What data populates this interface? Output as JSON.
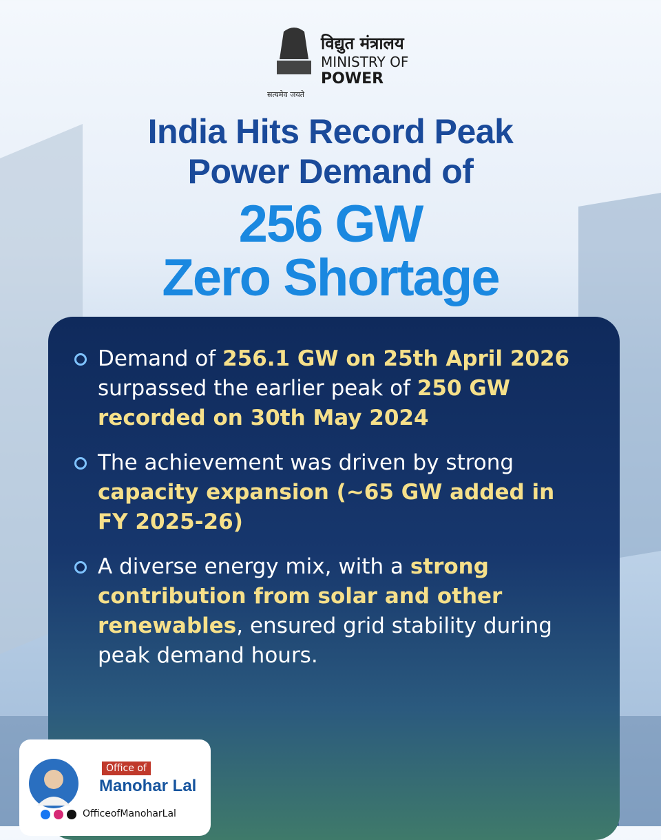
{
  "header": {
    "hindi_title": "विद्युत मंत्रालय",
    "ministry_line1": "MINISTRY OF",
    "ministry_line2": "POWER",
    "motto": "सत्यमेव जयते"
  },
  "headline": {
    "line1": "India Hits Record Peak",
    "line2": "Power Demand of",
    "figure": "256 GW",
    "tagline": "Zero Shortage"
  },
  "bullets": [
    {
      "segments": [
        {
          "text": "Demand of ",
          "highlight": false
        },
        {
          "text": "256.1 GW on 25th April 2026",
          "highlight": true
        },
        {
          "text": " surpassed the earlier peak of ",
          "highlight": false
        },
        {
          "text": "250 GW recorded on 30th May 2024",
          "highlight": true
        }
      ]
    },
    {
      "segments": [
        {
          "text": "The achievement was driven by strong ",
          "highlight": false
        },
        {
          "text": "capacity expansion (~65 GW added in FY 2025-26)",
          "highlight": true
        }
      ]
    },
    {
      "segments": [
        {
          "text": "A diverse energy mix, with a ",
          "highlight": false
        },
        {
          "text": "strong contribution from solar and other renewables",
          "highlight": true
        },
        {
          "text": ", ensured grid stability during peak demand hours.",
          "highlight": false
        }
      ]
    }
  ],
  "footer": {
    "office_of": "Office of",
    "name": "Manohar Lal",
    "handle": "OfficeofManoharLal"
  }
}
